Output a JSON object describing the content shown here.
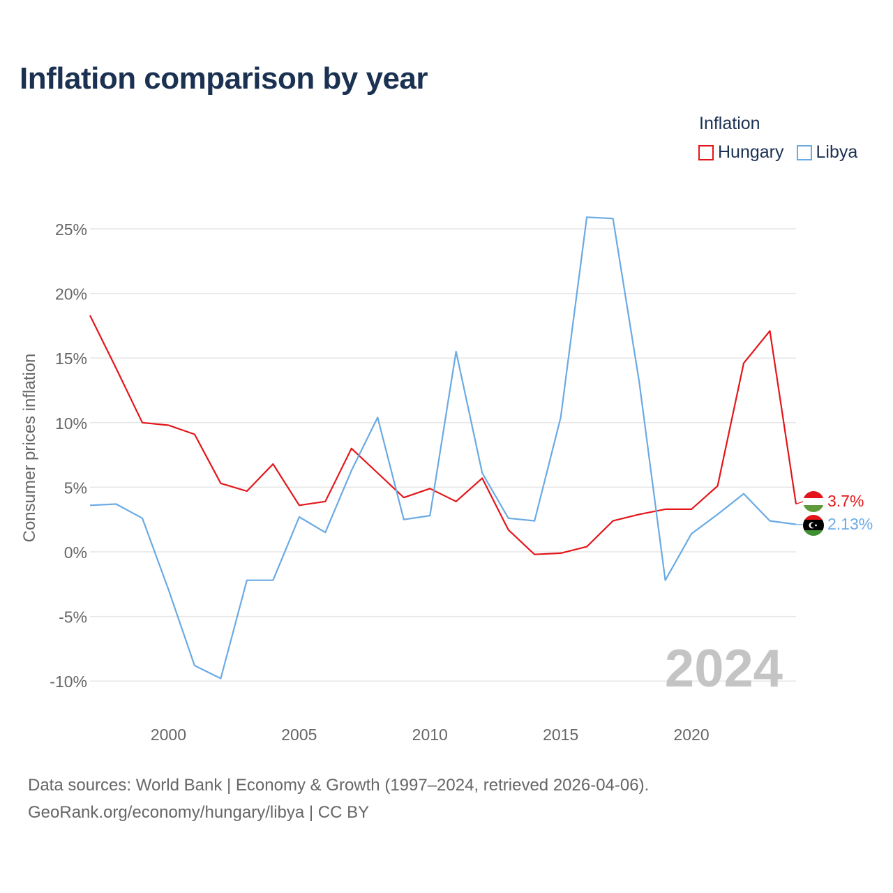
{
  "title": "Inflation comparison by year",
  "legend": {
    "title": "Inflation",
    "items": [
      {
        "label": "Hungary",
        "color": "#e3151a"
      },
      {
        "label": "Libya",
        "color": "#6aaae4"
      }
    ]
  },
  "chart_data": {
    "type": "line",
    "title": "Inflation comparison by year",
    "ylabel": "Consumer prices inflation",
    "xlabel": "",
    "x": [
      1997,
      1998,
      1999,
      2000,
      2001,
      2002,
      2003,
      2004,
      2005,
      2006,
      2007,
      2008,
      2009,
      2010,
      2011,
      2012,
      2013,
      2014,
      2015,
      2016,
      2017,
      2018,
      2019,
      2020,
      2021,
      2022,
      2023,
      2024
    ],
    "xlim": [
      1997,
      2024
    ],
    "ylim": [
      -11,
      26
    ],
    "xticks": [
      2000,
      2005,
      2010,
      2015,
      2020
    ],
    "xtick_labels": [
      "2000",
      "2005",
      "2010",
      "2015",
      "2020"
    ],
    "yticks": [
      -10,
      -5,
      0,
      5,
      10,
      15,
      20,
      25
    ],
    "ytick_labels": [
      "-10%",
      "-5%",
      "0%",
      "5%",
      "10%",
      "15%",
      "20%",
      "25%"
    ],
    "grid": true,
    "year_watermark": "2024",
    "series": [
      {
        "name": "Hungary",
        "color": "#e3151a",
        "end_label": "3.7%",
        "values": [
          18.3,
          14.2,
          10.0,
          9.8,
          9.1,
          5.3,
          4.7,
          6.8,
          3.6,
          3.9,
          8.0,
          6.1,
          4.2,
          4.9,
          3.9,
          5.7,
          1.7,
          -0.2,
          -0.1,
          0.4,
          2.4,
          2.9,
          3.3,
          3.3,
          5.1,
          14.6,
          17.1,
          3.7
        ]
      },
      {
        "name": "Libya",
        "color": "#6aaae4",
        "end_label": "2.13%",
        "values": [
          3.6,
          3.7,
          2.6,
          -2.9,
          -8.8,
          -9.8,
          -2.2,
          -2.2,
          2.7,
          1.5,
          6.3,
          10.4,
          2.5,
          2.8,
          15.5,
          6.1,
          2.6,
          2.4,
          10.4,
          25.9,
          25.8,
          13.2,
          -2.2,
          1.4,
          2.9,
          4.5,
          2.4,
          2.13
        ]
      }
    ]
  },
  "footer": {
    "line1": "Data sources: World Bank | Economy & Growth (1997–2024, retrieved 2026-04-06).",
    "line2": "GeoRank.org/economy/hungary/libya | CC BY"
  }
}
